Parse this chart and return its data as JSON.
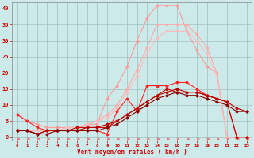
{
  "bg_color": "#cdeaea",
  "grid_color": "#9fbfbf",
  "xlabel": "Vent moyen/en rafales ( km/h )",
  "x_ticks": [
    0,
    1,
    2,
    3,
    4,
    5,
    6,
    7,
    8,
    9,
    10,
    11,
    12,
    13,
    14,
    15,
    16,
    17,
    18,
    19,
    20,
    21,
    22,
    23
  ],
  "y_ticks": [
    0,
    5,
    10,
    15,
    20,
    25,
    30,
    35,
    40
  ],
  "ylim": [
    -1,
    42
  ],
  "xlim": [
    -0.5,
    23.5
  ],
  "series": [
    {
      "x": [
        0,
        1,
        2,
        3,
        4,
        5,
        6,
        7,
        8,
        9,
        10,
        11,
        12,
        13,
        14,
        15,
        16,
        17,
        18,
        19,
        20,
        21,
        22,
        23
      ],
      "y": [
        7,
        5,
        4,
        3,
        3,
        3,
        3,
        4,
        4,
        12,
        16,
        22,
        30,
        37,
        41,
        41,
        41,
        33,
        27,
        22,
        20,
        0,
        0,
        0
      ],
      "color": "#ff9999",
      "lw": 0.8,
      "marker": "D",
      "ms": 1.5,
      "zorder": 3
    },
    {
      "x": [
        0,
        1,
        2,
        3,
        4,
        5,
        6,
        7,
        8,
        9,
        10,
        11,
        12,
        13,
        14,
        15,
        16,
        17,
        18,
        19,
        20,
        21,
        22,
        23
      ],
      "y": [
        2,
        2,
        2,
        2,
        2,
        3,
        3,
        4,
        5,
        7,
        10,
        15,
        21,
        28,
        35,
        35,
        35,
        35,
        32,
        28,
        20,
        0,
        0,
        0
      ],
      "color": "#ffaaaa",
      "lw": 0.8,
      "marker": "D",
      "ms": 1.5,
      "zorder": 3
    },
    {
      "x": [
        0,
        1,
        2,
        3,
        4,
        5,
        6,
        7,
        8,
        9,
        10,
        11,
        12,
        13,
        14,
        15,
        16,
        17,
        18,
        19,
        20,
        21,
        22,
        23
      ],
      "y": [
        2,
        2,
        2,
        2,
        2,
        3,
        3,
        4,
        5,
        6,
        9,
        14,
        19,
        26,
        31,
        33,
        33,
        33,
        30,
        26,
        19,
        0,
        0,
        0
      ],
      "color": "#ffbbbb",
      "lw": 0.8,
      "marker": "D",
      "ms": 1.5,
      "zorder": 3
    },
    {
      "x": [
        0,
        1,
        2,
        3,
        4,
        5,
        6,
        7,
        8,
        9,
        10,
        11,
        12,
        13,
        14,
        15,
        16,
        17,
        18,
        19,
        20,
        21,
        22,
        23
      ],
      "y": [
        7,
        5,
        3,
        2,
        2,
        2,
        2,
        2,
        2,
        1,
        8,
        12,
        8,
        16,
        16,
        16,
        17,
        17,
        15,
        13,
        12,
        11,
        0,
        0
      ],
      "color": "#ff2222",
      "lw": 0.8,
      "marker": "D",
      "ms": 1.5,
      "zorder": 4
    },
    {
      "x": [
        0,
        1,
        2,
        3,
        4,
        5,
        6,
        7,
        8,
        9,
        10,
        11,
        12,
        13,
        14,
        15,
        16,
        17,
        18,
        19,
        20,
        21,
        22,
        23
      ],
      "y": [
        2,
        2,
        1,
        2,
        2,
        2,
        3,
        3,
        3,
        3,
        5,
        7,
        9,
        11,
        13,
        15,
        14,
        14,
        14,
        13,
        12,
        11,
        0,
        0
      ],
      "color": "#cc0000",
      "lw": 0.8,
      "marker": "D",
      "ms": 1.5,
      "zorder": 4
    },
    {
      "x": [
        0,
        1,
        2,
        3,
        4,
        5,
        6,
        7,
        8,
        9,
        10,
        11,
        12,
        13,
        14,
        15,
        16,
        17,
        18,
        19,
        20,
        21,
        22,
        23
      ],
      "y": [
        2,
        2,
        1,
        2,
        2,
        2,
        2,
        3,
        3,
        4,
        5,
        7,
        9,
        11,
        13,
        14,
        15,
        14,
        14,
        13,
        12,
        11,
        9,
        8
      ],
      "color": "#bb0000",
      "lw": 0.8,
      "marker": "D",
      "ms": 1.5,
      "zorder": 4
    },
    {
      "x": [
        0,
        1,
        2,
        3,
        4,
        5,
        6,
        7,
        8,
        9,
        10,
        11,
        12,
        13,
        14,
        15,
        16,
        17,
        18,
        19,
        20,
        21,
        22,
        23
      ],
      "y": [
        2,
        2,
        1,
        1,
        2,
        2,
        2,
        2,
        2,
        3,
        4,
        6,
        8,
        10,
        12,
        13,
        14,
        13,
        13,
        12,
        11,
        10,
        8,
        8
      ],
      "color": "#880000",
      "lw": 0.8,
      "marker": "D",
      "ms": 1.5,
      "zorder": 4
    }
  ],
  "arrow_color": "#ff4444",
  "xlabel_color": "#cc0000",
  "tick_color": "#cc0000"
}
